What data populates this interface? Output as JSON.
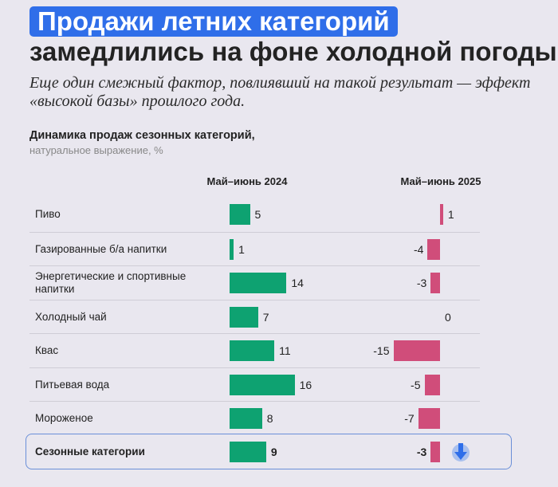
{
  "title_highlight": "Продажи летних категорий",
  "title_rest": "замедлились на фоне холодной погоды",
  "subtitle": "Еще один смежный фактор, повлиявший на такой результат — эффект «высокой базы» прошлого года.",
  "chart_data": {
    "type": "bar",
    "title": "Динамика продаж сезонных категорий,",
    "subtitle": "натуральное выражение, %",
    "categories": [
      "Пиво",
      "Газированные б/а напитки",
      "Энергетические и спортивные напитки",
      "Холодный чай",
      "Квас",
      "Питьевая вода",
      "Мороженое",
      "Сезонные категории"
    ],
    "series": [
      {
        "name": "Май–июнь 2024",
        "values": [
          5,
          1,
          14,
          7,
          11,
          16,
          8,
          9
        ],
        "color": "#0ea271"
      },
      {
        "name": "Май–июнь 2025",
        "values": [
          1,
          -4,
          -3,
          0,
          -15,
          -5,
          -7,
          -3
        ],
        "color": "#d04d7a"
      }
    ],
    "highlighted_category": "Сезонные категории",
    "highlight_icon": "arrow-down-icon",
    "accent": "#2f6ee9"
  }
}
